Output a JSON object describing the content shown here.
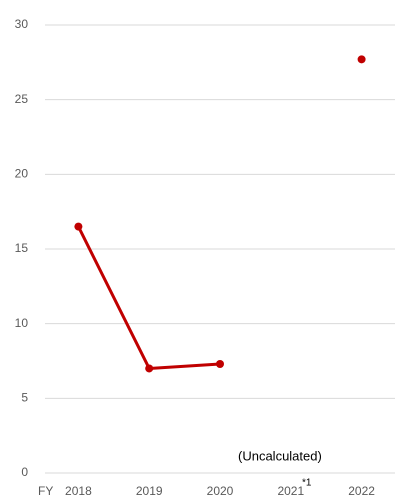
{
  "chart_data": {
    "type": "line",
    "x_prefix": "FY",
    "categories": [
      "2018",
      "2019",
      "2020",
      "2021",
      "2022"
    ],
    "series": [
      {
        "color": "#c00000",
        "values": [
          16.5,
          7.0,
          7.3,
          null,
          27.7
        ]
      }
    ],
    "ylim": [
      0,
      30
    ],
    "yticks": [
      0,
      5,
      10,
      15,
      20,
      25,
      30
    ],
    "grid": true,
    "annotations": [
      "(Uncalculated)",
      "*1"
    ]
  }
}
